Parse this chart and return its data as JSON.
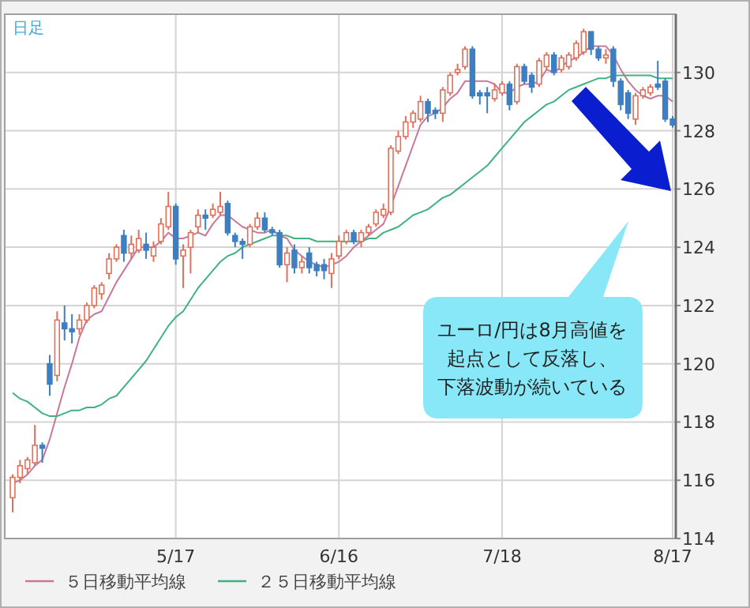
{
  "chart_data": {
    "type": "candlestick",
    "title": "日足",
    "categories": [
      null,
      null,
      null,
      null,
      null,
      null,
      null,
      null,
      null,
      null,
      null,
      null,
      null,
      null,
      null,
      null,
      null,
      null,
      null,
      null,
      null,
      null,
      "5/17",
      null,
      null,
      null,
      null,
      null,
      null,
      null,
      null,
      null,
      null,
      null,
      null,
      null,
      null,
      null,
      null,
      null,
      null,
      null,
      null,
      null,
      "6/16",
      null,
      null,
      null,
      null,
      null,
      null,
      null,
      null,
      null,
      null,
      null,
      null,
      null,
      null,
      null,
      null,
      null,
      null,
      null,
      null,
      null,
      "7/18",
      null,
      null,
      null,
      null,
      null,
      null,
      null,
      null,
      null,
      null,
      null,
      null,
      null,
      null,
      null,
      null,
      null,
      null,
      null,
      null,
      null,
      null,
      "8/17"
    ],
    "ohlc": [
      [
        115.4,
        116.2,
        114.9,
        116.1
      ],
      [
        116.1,
        116.7,
        115.9,
        116.5
      ],
      [
        116.4,
        116.8,
        116.2,
        116.7
      ],
      [
        116.6,
        117.9,
        116.5,
        117.2
      ],
      [
        117.2,
        117.3,
        116.6,
        117.1
      ],
      [
        120.0,
        120.3,
        118.9,
        119.3
      ],
      [
        119.6,
        121.8,
        119.4,
        121.5
      ],
      [
        121.4,
        122.0,
        120.8,
        121.2
      ],
      [
        121.2,
        121.7,
        120.7,
        121.1
      ],
      [
        121.2,
        121.7,
        121.0,
        121.5
      ],
      [
        121.5,
        122.1,
        121.4,
        122.0
      ],
      [
        122.0,
        122.7,
        121.9,
        122.6
      ],
      [
        122.4,
        122.8,
        122.2,
        122.7
      ],
      [
        123.1,
        123.8,
        122.9,
        123.6
      ],
      [
        123.6,
        124.1,
        123.5,
        124.0
      ],
      [
        124.4,
        124.6,
        123.5,
        123.8
      ],
      [
        123.8,
        124.4,
        123.6,
        124.1
      ],
      [
        123.9,
        124.6,
        123.8,
        124.3
      ],
      [
        124.1,
        124.5,
        123.6,
        123.9
      ],
      [
        123.7,
        124.2,
        123.5,
        124.0
      ],
      [
        124.2,
        125.0,
        124.1,
        124.8
      ],
      [
        124.7,
        125.9,
        124.6,
        125.4
      ],
      [
        125.4,
        125.5,
        123.4,
        123.6
      ],
      [
        123.7,
        124.1,
        122.6,
        123.9
      ],
      [
        124.0,
        124.6,
        123.1,
        124.5
      ],
      [
        124.7,
        125.3,
        124.5,
        125.1
      ],
      [
        125.1,
        125.3,
        124.6,
        125.0
      ],
      [
        125.1,
        125.5,
        125.0,
        125.3
      ],
      [
        125.2,
        125.9,
        125.1,
        125.4
      ],
      [
        125.5,
        125.6,
        124.4,
        124.5
      ],
      [
        124.4,
        124.5,
        124.0,
        124.2
      ],
      [
        124.2,
        124.3,
        123.6,
        124.1
      ],
      [
        124.1,
        124.8,
        124.0,
        124.7
      ],
      [
        124.7,
        125.2,
        124.6,
        125.0
      ],
      [
        125.0,
        125.2,
        124.5,
        124.6
      ],
      [
        124.6,
        124.7,
        124.4,
        124.5
      ],
      [
        124.5,
        124.6,
        123.3,
        123.4
      ],
      [
        123.4,
        124.0,
        122.8,
        123.8
      ],
      [
        123.9,
        124.1,
        123.1,
        123.3
      ],
      [
        123.3,
        123.7,
        123.1,
        123.5
      ],
      [
        123.8,
        124.0,
        123.1,
        123.3
      ],
      [
        123.4,
        123.5,
        123.0,
        123.2
      ],
      [
        123.4,
        123.6,
        122.9,
        123.2
      ],
      [
        123.1,
        123.8,
        122.6,
        123.6
      ],
      [
        123.7,
        124.4,
        123.6,
        124.2
      ],
      [
        124.2,
        124.6,
        124.1,
        124.5
      ],
      [
        124.5,
        124.6,
        124.1,
        124.2
      ],
      [
        124.2,
        124.6,
        124.0,
        124.5
      ],
      [
        124.5,
        124.8,
        124.4,
        124.7
      ],
      [
        124.8,
        125.3,
        124.7,
        125.2
      ],
      [
        125.1,
        125.5,
        125.0,
        125.3
      ],
      [
        125.2,
        127.5,
        125.1,
        127.4
      ],
      [
        127.3,
        128.0,
        127.2,
        127.8
      ],
      [
        127.8,
        128.5,
        127.7,
        128.3
      ],
      [
        128.3,
        128.7,
        128.1,
        128.6
      ],
      [
        128.4,
        129.2,
        128.3,
        129.0
      ],
      [
        129.0,
        129.1,
        128.3,
        128.6
      ],
      [
        128.7,
        128.8,
        128.4,
        128.6
      ],
      [
        128.6,
        129.5,
        128.3,
        129.4
      ],
      [
        129.3,
        130.0,
        129.2,
        129.9
      ],
      [
        130.0,
        130.3,
        129.9,
        130.1
      ],
      [
        130.2,
        130.9,
        130.1,
        130.8
      ],
      [
        130.8,
        130.9,
        129.1,
        129.2
      ],
      [
        129.3,
        129.4,
        128.9,
        129.2
      ],
      [
        129.3,
        129.5,
        128.6,
        129.2
      ],
      [
        129.1,
        129.6,
        129.0,
        129.4
      ],
      [
        129.3,
        129.7,
        129.2,
        129.6
      ],
      [
        129.6,
        129.7,
        128.7,
        128.9
      ],
      [
        129.0,
        130.3,
        128.9,
        130.2
      ],
      [
        130.2,
        130.3,
        129.6,
        129.7
      ],
      [
        129.9,
        130.0,
        129.3,
        129.5
      ],
      [
        129.6,
        130.5,
        129.5,
        130.4
      ],
      [
        130.2,
        130.7,
        130.1,
        130.6
      ],
      [
        130.6,
        130.7,
        129.9,
        130.0
      ],
      [
        130.1,
        130.6,
        130.0,
        130.5
      ],
      [
        130.2,
        130.7,
        130.1,
        130.6
      ],
      [
        130.5,
        131.1,
        130.4,
        131.0
      ],
      [
        130.7,
        131.5,
        130.6,
        131.4
      ],
      [
        131.4,
        131.4,
        130.6,
        130.8
      ],
      [
        130.8,
        130.9,
        130.4,
        130.5
      ],
      [
        130.5,
        130.8,
        130.3,
        130.6
      ],
      [
        130.8,
        130.9,
        129.5,
        129.7
      ],
      [
        129.7,
        129.8,
        128.7,
        128.9
      ],
      [
        129.3,
        129.4,
        128.4,
        128.6
      ],
      [
        128.4,
        129.3,
        128.2,
        129.2
      ],
      [
        129.2,
        129.5,
        129.1,
        129.4
      ],
      [
        129.3,
        129.6,
        129.2,
        129.5
      ],
      [
        129.6,
        130.4,
        129.4,
        129.5
      ],
      [
        129.7,
        129.8,
        128.3,
        128.4
      ],
      [
        128.4,
        128.5,
        128.1,
        128.2
      ]
    ],
    "colors": [
      "#e0705a",
      "#e0705a",
      "#e0705a",
      "#e0705a",
      "#3d7fc0",
      "#3d7fc0",
      "#e0705a",
      "#3d7fc0",
      "#3d7fc0",
      "#e0705a",
      "#e0705a",
      "#e0705a",
      "#e0705a",
      "#e0705a",
      "#e0705a",
      "#3d7fc0",
      "#e0705a",
      "#e0705a",
      "#3d7fc0",
      "#e0705a",
      "#e0705a",
      "#e0705a",
      "#3d7fc0",
      "#e0705a",
      "#e0705a",
      "#e0705a",
      "#3d7fc0",
      "#e0705a",
      "#e0705a",
      "#3d7fc0",
      "#3d7fc0",
      "#3d7fc0",
      "#e0705a",
      "#e0705a",
      "#3d7fc0",
      "#3d7fc0",
      "#3d7fc0",
      "#e0705a",
      "#3d7fc0",
      "#e0705a",
      "#3d7fc0",
      "#3d7fc0",
      "#3d7fc0",
      "#e0705a",
      "#e0705a",
      "#e0705a",
      "#3d7fc0",
      "#e0705a",
      "#e0705a",
      "#e0705a",
      "#e0705a",
      "#e0705a",
      "#e0705a",
      "#e0705a",
      "#e0705a",
      "#e0705a",
      "#3d7fc0",
      "#3d7fc0",
      "#e0705a",
      "#e0705a",
      "#e0705a",
      "#e0705a",
      "#3d7fc0",
      "#3d7fc0",
      "#3d7fc0",
      "#e0705a",
      "#e0705a",
      "#3d7fc0",
      "#e0705a",
      "#3d7fc0",
      "#3d7fc0",
      "#e0705a",
      "#e0705a",
      "#3d7fc0",
      "#e0705a",
      "#e0705a",
      "#e0705a",
      "#e0705a",
      "#3d7fc0",
      "#3d7fc0",
      "#e0705a",
      "#3d7fc0",
      "#3d7fc0",
      "#3d7fc0",
      "#e0705a",
      "#e0705a",
      "#e0705a",
      "#3d7fc0",
      "#3d7fc0",
      "#3d7fc0"
    ],
    "series": [
      {
        "type": "line",
        "name": "５日移動平均線",
        "color": "#c8789a",
        "values": [
          115.9,
          116.0,
          116.2,
          116.5,
          116.7,
          117.4,
          118.3,
          119.2,
          120.0,
          120.9,
          121.5,
          121.7,
          121.8,
          122.3,
          122.8,
          123.2,
          123.6,
          124.0,
          124.0,
          124.0,
          124.2,
          124.5,
          124.3,
          124.3,
          124.4,
          124.5,
          124.4,
          124.8,
          125.1,
          125.1,
          124.9,
          124.7,
          124.6,
          124.5,
          124.5,
          124.6,
          124.4,
          124.3,
          123.9,
          123.7,
          123.5,
          123.4,
          123.3,
          123.4,
          123.5,
          123.7,
          124.0,
          124.2,
          124.4,
          124.6,
          124.8,
          125.4,
          126.1,
          126.8,
          127.5,
          128.2,
          128.5,
          128.6,
          128.8,
          129.1,
          129.3,
          129.7,
          129.7,
          129.7,
          129.7,
          129.6,
          129.3,
          129.3,
          129.5,
          129.6,
          129.6,
          129.7,
          130.1,
          130.0,
          130.2,
          130.4,
          130.5,
          130.7,
          130.9,
          130.9,
          130.9,
          130.6,
          130.1,
          129.7,
          129.4,
          129.2,
          129.1,
          129.2,
          129.2,
          129.0
        ]
      },
      {
        "type": "line",
        "name": "２５日移動平均線",
        "color": "#3fb27f",
        "values": [
          119.0,
          118.8,
          118.7,
          118.5,
          118.3,
          118.2,
          118.2,
          118.3,
          118.4,
          118.4,
          118.5,
          118.5,
          118.6,
          118.8,
          118.9,
          119.2,
          119.5,
          119.8,
          120.1,
          120.5,
          120.9,
          121.3,
          121.6,
          121.8,
          122.2,
          122.6,
          122.9,
          123.2,
          123.5,
          123.7,
          123.8,
          124.0,
          124.1,
          124.2,
          124.3,
          124.4,
          124.4,
          124.4,
          124.3,
          124.3,
          124.3,
          124.2,
          124.2,
          124.2,
          124.2,
          124.2,
          124.2,
          124.2,
          124.3,
          124.3,
          124.5,
          124.6,
          124.7,
          124.9,
          125.1,
          125.2,
          125.3,
          125.5,
          125.7,
          125.8,
          126.0,
          126.2,
          126.4,
          126.6,
          126.8,
          127.1,
          127.4,
          127.7,
          128.0,
          128.3,
          128.5,
          128.7,
          128.9,
          129.0,
          129.2,
          129.4,
          129.5,
          129.6,
          129.7,
          129.8,
          129.8,
          129.9,
          129.9,
          129.9,
          129.9,
          129.9,
          129.9,
          129.8,
          129.8,
          129.8
        ]
      }
    ],
    "ylim": [
      114,
      132
    ],
    "yticks": [
      114,
      116,
      118,
      120,
      122,
      124,
      126,
      128,
      130
    ],
    "grid": true,
    "legend": "bottom",
    "annotations": [
      "ユーロ/円は8月高値を",
      "起点として反落し、",
      "下落波動が続いている"
    ]
  }
}
